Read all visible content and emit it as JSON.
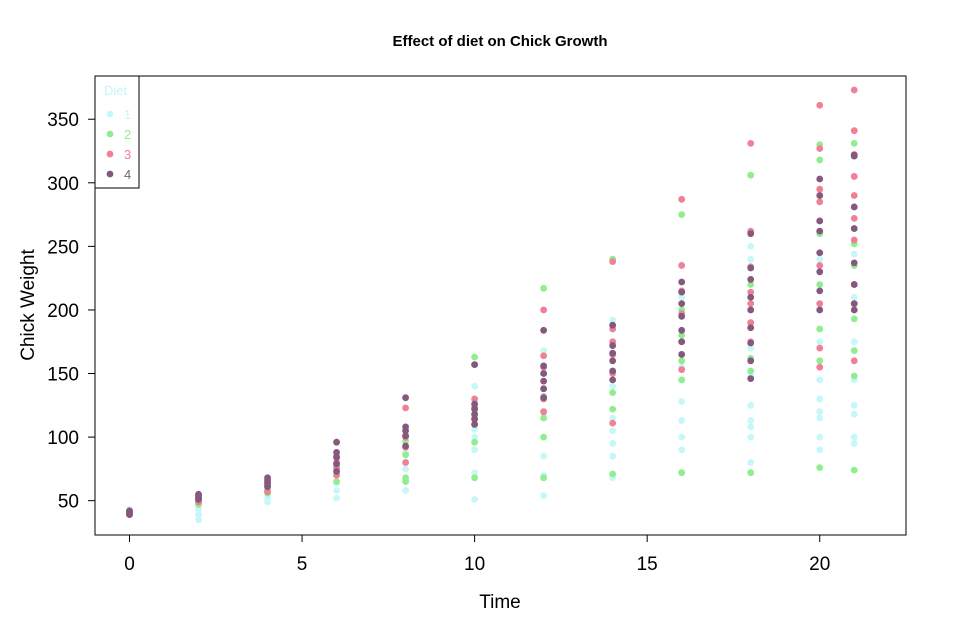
{
  "chart_data": {
    "type": "scatter",
    "title": "Effect of diet on Chick Growth",
    "xlabel": "Time",
    "ylabel": "Chick Weight",
    "xlim": [
      -1,
      22.5
    ],
    "ylim": [
      23,
      384
    ],
    "xticks": [
      0,
      5,
      10,
      15,
      20
    ],
    "yticks": [
      50,
      100,
      150,
      200,
      250,
      300,
      350
    ],
    "grid": false,
    "legend": {
      "title": "Diet",
      "position": "top-left"
    },
    "series": [
      {
        "name": "1",
        "color": "#c6f7f9",
        "points": [
          [
            0,
            42
          ],
          [
            0,
            40
          ],
          [
            0,
            43
          ],
          [
            0,
            41
          ],
          [
            0,
            39
          ],
          [
            2,
            51
          ],
          [
            2,
            49
          ],
          [
            2,
            39
          ],
          [
            2,
            35
          ],
          [
            2,
            43
          ],
          [
            4,
            59
          ],
          [
            4,
            49
          ],
          [
            4,
            55
          ],
          [
            4,
            52
          ],
          [
            4,
            62
          ],
          [
            6,
            64
          ],
          [
            6,
            52
          ],
          [
            6,
            58
          ],
          [
            6,
            72
          ],
          [
            6,
            75
          ],
          [
            8,
            58
          ],
          [
            8,
            67
          ],
          [
            8,
            75
          ],
          [
            8,
            80
          ],
          [
            8,
            88
          ],
          [
            10,
            51
          ],
          [
            10,
            72
          ],
          [
            10,
            90
          ],
          [
            10,
            100
          ],
          [
            10,
            106
          ],
          [
            10,
            125
          ],
          [
            10,
            140
          ],
          [
            12,
            54
          ],
          [
            12,
            70
          ],
          [
            12,
            85
          ],
          [
            12,
            100
          ],
          [
            12,
            118
          ],
          [
            12,
            130
          ],
          [
            12,
            150
          ],
          [
            12,
            168
          ],
          [
            14,
            68
          ],
          [
            14,
            85
          ],
          [
            14,
            95
          ],
          [
            14,
            105
          ],
          [
            14,
            115
          ],
          [
            14,
            140
          ],
          [
            14,
            165
          ],
          [
            14,
            185
          ],
          [
            14,
            192
          ],
          [
            16,
            90
          ],
          [
            16,
            100
          ],
          [
            16,
            113
          ],
          [
            16,
            128
          ],
          [
            16,
            155
          ],
          [
            16,
            175
          ],
          [
            16,
            200
          ],
          [
            16,
            210
          ],
          [
            18,
            80
          ],
          [
            18,
            100
          ],
          [
            18,
            108
          ],
          [
            18,
            113
          ],
          [
            18,
            125
          ],
          [
            18,
            148
          ],
          [
            18,
            170
          ],
          [
            18,
            210
          ],
          [
            18,
            240
          ],
          [
            18,
            250
          ],
          [
            20,
            90
          ],
          [
            20,
            100
          ],
          [
            20,
            115
          ],
          [
            20,
            120
          ],
          [
            20,
            130
          ],
          [
            20,
            145
          ],
          [
            20,
            175
          ],
          [
            20,
            205
          ],
          [
            20,
            240
          ],
          [
            20,
            290
          ],
          [
            21,
            95
          ],
          [
            21,
            100
          ],
          [
            21,
            118
          ],
          [
            21,
            125
          ],
          [
            21,
            145
          ],
          [
            21,
            175
          ],
          [
            21,
            210
          ],
          [
            21,
            244
          ],
          [
            21,
            305
          ]
        ]
      },
      {
        "name": "2",
        "color": "#90ee90",
        "points": [
          [
            0,
            42
          ],
          [
            0,
            40
          ],
          [
            0,
            41
          ],
          [
            2,
            49
          ],
          [
            2,
            48
          ],
          [
            2,
            53
          ],
          [
            2,
            47
          ],
          [
            4,
            56
          ],
          [
            4,
            60
          ],
          [
            4,
            62
          ],
          [
            4,
            58
          ],
          [
            6,
            65
          ],
          [
            6,
            70
          ],
          [
            6,
            75
          ],
          [
            6,
            78
          ],
          [
            8,
            65
          ],
          [
            8,
            68
          ],
          [
            8,
            86
          ],
          [
            8,
            97
          ],
          [
            10,
            68
          ],
          [
            10,
            96
          ],
          [
            10,
            110
          ],
          [
            10,
            126
          ],
          [
            10,
            163
          ],
          [
            12,
            68
          ],
          [
            12,
            100
          ],
          [
            12,
            115
          ],
          [
            12,
            132
          ],
          [
            12,
            150
          ],
          [
            12,
            217
          ],
          [
            14,
            71
          ],
          [
            14,
            122
          ],
          [
            14,
            135
          ],
          [
            14,
            152
          ],
          [
            14,
            175
          ],
          [
            14,
            240
          ],
          [
            16,
            72
          ],
          [
            16,
            145
          ],
          [
            16,
            160
          ],
          [
            16,
            180
          ],
          [
            16,
            200
          ],
          [
            16,
            275
          ],
          [
            18,
            72
          ],
          [
            18,
            152
          ],
          [
            18,
            162
          ],
          [
            18,
            190
          ],
          [
            18,
            220
          ],
          [
            18,
            306
          ],
          [
            20,
            76
          ],
          [
            20,
            160
          ],
          [
            20,
            185
          ],
          [
            20,
            220
          ],
          [
            20,
            260
          ],
          [
            20,
            318
          ],
          [
            20,
            330
          ],
          [
            21,
            74
          ],
          [
            21,
            148
          ],
          [
            21,
            168
          ],
          [
            21,
            193
          ],
          [
            21,
            235
          ],
          [
            21,
            252
          ],
          [
            21,
            331
          ]
        ]
      },
      {
        "name": "3",
        "color": "#f08096",
        "points": [
          [
            0,
            41
          ],
          [
            0,
            39
          ],
          [
            0,
            42
          ],
          [
            2,
            53
          ],
          [
            2,
            50
          ],
          [
            2,
            51
          ],
          [
            2,
            49
          ],
          [
            4,
            62
          ],
          [
            4,
            63
          ],
          [
            4,
            57
          ],
          [
            4,
            65
          ],
          [
            6,
            70
          ],
          [
            6,
            76
          ],
          [
            6,
            80
          ],
          [
            6,
            85
          ],
          [
            8,
            80
          ],
          [
            8,
            92
          ],
          [
            8,
            100
          ],
          [
            8,
            123
          ],
          [
            10,
            110
          ],
          [
            10,
            115
          ],
          [
            10,
            123
          ],
          [
            10,
            130
          ],
          [
            10,
            157
          ],
          [
            12,
            120
          ],
          [
            12,
            130
          ],
          [
            12,
            138
          ],
          [
            12,
            155
          ],
          [
            12,
            164
          ],
          [
            12,
            200
          ],
          [
            14,
            111
          ],
          [
            14,
            150
          ],
          [
            14,
            165
          ],
          [
            14,
            175
          ],
          [
            14,
            185
          ],
          [
            14,
            238
          ],
          [
            16,
            153
          ],
          [
            16,
            175
          ],
          [
            16,
            197
          ],
          [
            16,
            215
          ],
          [
            16,
            235
          ],
          [
            16,
            287
          ],
          [
            18,
            175
          ],
          [
            18,
            190
          ],
          [
            18,
            205
          ],
          [
            18,
            214
          ],
          [
            18,
            234
          ],
          [
            18,
            262
          ],
          [
            18,
            331
          ],
          [
            20,
            155
          ],
          [
            20,
            170
          ],
          [
            20,
            205
          ],
          [
            20,
            235
          ],
          [
            20,
            285
          ],
          [
            20,
            295
          ],
          [
            20,
            327
          ],
          [
            20,
            361
          ],
          [
            21,
            160
          ],
          [
            21,
            205
          ],
          [
            21,
            220
          ],
          [
            21,
            255
          ],
          [
            21,
            272
          ],
          [
            21,
            290
          ],
          [
            21,
            305
          ],
          [
            21,
            322
          ],
          [
            21,
            341
          ],
          [
            21,
            373
          ]
        ]
      },
      {
        "name": "4",
        "color": "#85597e",
        "points": [
          [
            0,
            42
          ],
          [
            0,
            40
          ],
          [
            0,
            41
          ],
          [
            0,
            39
          ],
          [
            2,
            51
          ],
          [
            2,
            52
          ],
          [
            2,
            54
          ],
          [
            2,
            55
          ],
          [
            4,
            61
          ],
          [
            4,
            64
          ],
          [
            4,
            66
          ],
          [
            4,
            68
          ],
          [
            6,
            73
          ],
          [
            6,
            79
          ],
          [
            6,
            84
          ],
          [
            6,
            88
          ],
          [
            6,
            96
          ],
          [
            8,
            93
          ],
          [
            8,
            101
          ],
          [
            8,
            105
          ],
          [
            8,
            108
          ],
          [
            8,
            131
          ],
          [
            10,
            110
          ],
          [
            10,
            114
          ],
          [
            10,
            118
          ],
          [
            10,
            122
          ],
          [
            10,
            126
          ],
          [
            10,
            157
          ],
          [
            12,
            131
          ],
          [
            12,
            138
          ],
          [
            12,
            144
          ],
          [
            12,
            150
          ],
          [
            12,
            156
          ],
          [
            12,
            184
          ],
          [
            14,
            145
          ],
          [
            14,
            152
          ],
          [
            14,
            160
          ],
          [
            14,
            166
          ],
          [
            14,
            172
          ],
          [
            14,
            188
          ],
          [
            16,
            165
          ],
          [
            16,
            175
          ],
          [
            16,
            184
          ],
          [
            16,
            195
          ],
          [
            16,
            205
          ],
          [
            16,
            214
          ],
          [
            16,
            222
          ],
          [
            18,
            146
          ],
          [
            18,
            160
          ],
          [
            18,
            174
          ],
          [
            18,
            186
          ],
          [
            18,
            200
          ],
          [
            18,
            210
          ],
          [
            18,
            224
          ],
          [
            18,
            233
          ],
          [
            18,
            260
          ],
          [
            20,
            200
          ],
          [
            20,
            215
          ],
          [
            20,
            230
          ],
          [
            20,
            245
          ],
          [
            20,
            262
          ],
          [
            20,
            270
          ],
          [
            20,
            290
          ],
          [
            20,
            303
          ],
          [
            21,
            200
          ],
          [
            21,
            205
          ],
          [
            21,
            220
          ],
          [
            21,
            237
          ],
          [
            21,
            264
          ],
          [
            21,
            281
          ],
          [
            21,
            321
          ],
          [
            21,
            322
          ]
        ]
      }
    ]
  }
}
